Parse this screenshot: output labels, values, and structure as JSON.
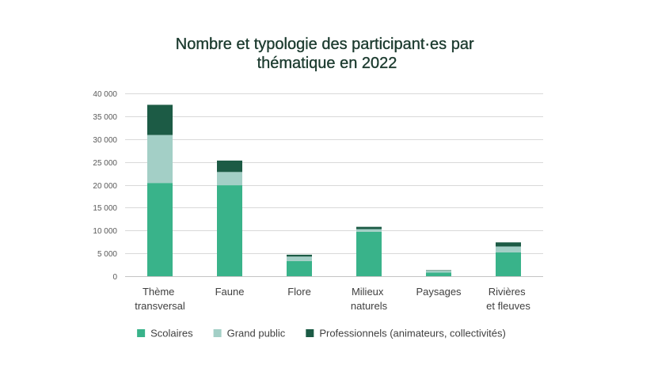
{
  "chart_data": {
    "type": "bar",
    "stacked": true,
    "title": "Nombre et typologie des participant·es par thématique en 2022",
    "categories": [
      "Thème transversal",
      "Faune",
      "Flore",
      "Milieux naturels",
      "Paysages",
      "Rivières et fleuves"
    ],
    "series": [
      {
        "name": "Scolaires",
        "color": "#39b38a",
        "values": [
          20400,
          19900,
          3300,
          9700,
          800,
          5200
        ]
      },
      {
        "name": "Grand public",
        "color": "#a3cfc6",
        "values": [
          10500,
          2900,
          1000,
          600,
          400,
          1300
        ]
      },
      {
        "name": "Professionnels (animateurs, collectivités)",
        "color": "#1c5b45",
        "values": [
          6600,
          2500,
          400,
          500,
          100,
          900
        ]
      }
    ],
    "ylim": [
      0,
      40000
    ],
    "yticks": [
      0,
      5000,
      10000,
      15000,
      20000,
      25000,
      30000,
      35000,
      40000
    ],
    "ytick_labels": [
      "0",
      "5 000",
      "10 000",
      "15 000",
      "20 000",
      "25 000",
      "30 000",
      "35 000",
      "40 000"
    ],
    "grid": true,
    "legend": "bottom",
    "colors": {
      "title": "#1c3b2f"
    }
  }
}
